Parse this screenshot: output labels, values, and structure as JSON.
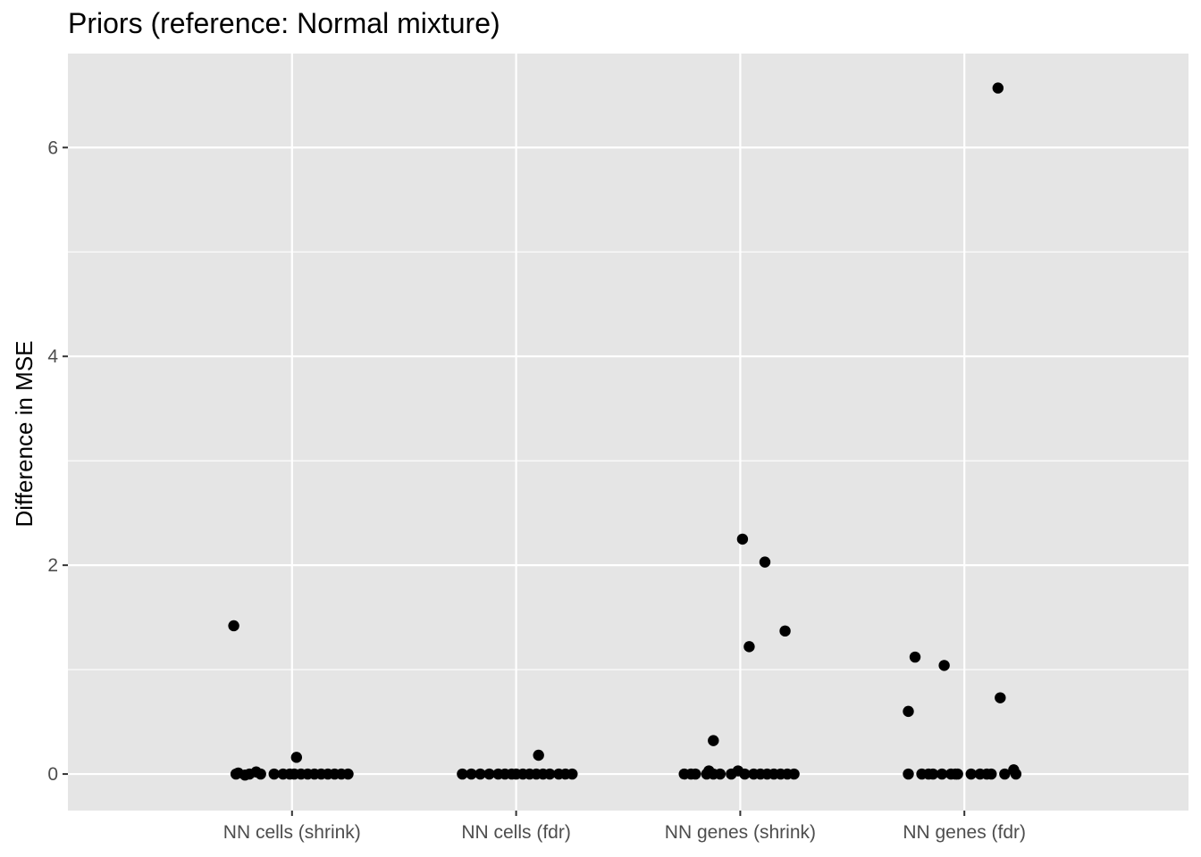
{
  "chart_data": {
    "type": "scatter",
    "title": "Priors (reference: Normal mixture)",
    "xlabel": "",
    "ylabel": "Difference in MSE",
    "categories": [
      "NN cells (shrink)",
      "NN cells (fdr)",
      "NN genes (shrink)",
      "NN genes (fdr)"
    ],
    "y_ticks": [
      0,
      2,
      4,
      6
    ],
    "ylim": [
      -0.35,
      6.9
    ],
    "grid": true,
    "legend": "none",
    "colors": {
      "panel": "#e5e5e5",
      "grid": "#ffffff",
      "point": "#000000",
      "tick_text": "#4d4d4d"
    },
    "points": [
      {
        "category": "NN cells (shrink)",
        "offset": -0.26,
        "value": 1.42
      },
      {
        "category": "NN cells (shrink)",
        "offset": 0.02,
        "value": 0.16
      },
      {
        "category": "NN cells (shrink)",
        "offset": -0.16,
        "value": 0.02
      },
      {
        "category": "NN cells (shrink)",
        "offset": -0.25,
        "value": 0.0
      },
      {
        "category": "NN cells (shrink)",
        "offset": -0.24,
        "value": 0.01
      },
      {
        "category": "NN cells (shrink)",
        "offset": -0.21,
        "value": -0.01
      },
      {
        "category": "NN cells (shrink)",
        "offset": -0.19,
        "value": 0.0
      },
      {
        "category": "NN cells (shrink)",
        "offset": -0.14,
        "value": 0.0
      },
      {
        "category": "NN cells (shrink)",
        "offset": -0.08,
        "value": 0.0
      },
      {
        "category": "NN cells (shrink)",
        "offset": -0.04,
        "value": 0.0
      },
      {
        "category": "NN cells (shrink)",
        "offset": -0.01,
        "value": 0.0
      },
      {
        "category": "NN cells (shrink)",
        "offset": 0.01,
        "value": 0.0
      },
      {
        "category": "NN cells (shrink)",
        "offset": 0.04,
        "value": 0.0
      },
      {
        "category": "NN cells (shrink)",
        "offset": 0.07,
        "value": 0.0
      },
      {
        "category": "NN cells (shrink)",
        "offset": 0.1,
        "value": 0.0
      },
      {
        "category": "NN cells (shrink)",
        "offset": 0.13,
        "value": 0.0
      },
      {
        "category": "NN cells (shrink)",
        "offset": 0.16,
        "value": 0.0
      },
      {
        "category": "NN cells (shrink)",
        "offset": 0.19,
        "value": 0.0
      },
      {
        "category": "NN cells (shrink)",
        "offset": 0.22,
        "value": 0.0
      },
      {
        "category": "NN cells (shrink)",
        "offset": 0.25,
        "value": 0.0
      },
      {
        "category": "NN cells (fdr)",
        "offset": 0.1,
        "value": 0.18
      },
      {
        "category": "NN cells (fdr)",
        "offset": -0.24,
        "value": 0.0
      },
      {
        "category": "NN cells (fdr)",
        "offset": -0.2,
        "value": 0.0
      },
      {
        "category": "NN cells (fdr)",
        "offset": -0.16,
        "value": 0.0
      },
      {
        "category": "NN cells (fdr)",
        "offset": -0.12,
        "value": 0.0
      },
      {
        "category": "NN cells (fdr)",
        "offset": -0.08,
        "value": 0.0
      },
      {
        "category": "NN cells (fdr)",
        "offset": -0.05,
        "value": 0.0
      },
      {
        "category": "NN cells (fdr)",
        "offset": -0.02,
        "value": 0.0
      },
      {
        "category": "NN cells (fdr)",
        "offset": 0.0,
        "value": 0.0
      },
      {
        "category": "NN cells (fdr)",
        "offset": 0.03,
        "value": 0.0
      },
      {
        "category": "NN cells (fdr)",
        "offset": 0.06,
        "value": 0.0
      },
      {
        "category": "NN cells (fdr)",
        "offset": 0.09,
        "value": 0.0
      },
      {
        "category": "NN cells (fdr)",
        "offset": 0.12,
        "value": 0.0
      },
      {
        "category": "NN cells (fdr)",
        "offset": 0.15,
        "value": 0.0
      },
      {
        "category": "NN cells (fdr)",
        "offset": 0.19,
        "value": 0.0
      },
      {
        "category": "NN cells (fdr)",
        "offset": 0.22,
        "value": 0.0
      },
      {
        "category": "NN cells (fdr)",
        "offset": 0.25,
        "value": 0.0
      },
      {
        "category": "NN genes (shrink)",
        "offset": 0.01,
        "value": 2.25
      },
      {
        "category": "NN genes (shrink)",
        "offset": 0.11,
        "value": 2.03
      },
      {
        "category": "NN genes (shrink)",
        "offset": 0.2,
        "value": 1.37
      },
      {
        "category": "NN genes (shrink)",
        "offset": 0.04,
        "value": 1.22
      },
      {
        "category": "NN genes (shrink)",
        "offset": -0.12,
        "value": 0.32
      },
      {
        "category": "NN genes (shrink)",
        "offset": -0.14,
        "value": 0.03
      },
      {
        "category": "NN genes (shrink)",
        "offset": -0.01,
        "value": 0.03
      },
      {
        "category": "NN genes (shrink)",
        "offset": -0.25,
        "value": 0.0
      },
      {
        "category": "NN genes (shrink)",
        "offset": -0.22,
        "value": 0.0
      },
      {
        "category": "NN genes (shrink)",
        "offset": -0.2,
        "value": 0.0
      },
      {
        "category": "NN genes (shrink)",
        "offset": -0.15,
        "value": 0.0
      },
      {
        "category": "NN genes (shrink)",
        "offset": -0.12,
        "value": 0.0
      },
      {
        "category": "NN genes (shrink)",
        "offset": -0.09,
        "value": 0.0
      },
      {
        "category": "NN genes (shrink)",
        "offset": -0.04,
        "value": 0.0
      },
      {
        "category": "NN genes (shrink)",
        "offset": 0.02,
        "value": 0.0
      },
      {
        "category": "NN genes (shrink)",
        "offset": 0.06,
        "value": 0.0
      },
      {
        "category": "NN genes (shrink)",
        "offset": 0.09,
        "value": 0.0
      },
      {
        "category": "NN genes (shrink)",
        "offset": 0.12,
        "value": 0.0
      },
      {
        "category": "NN genes (shrink)",
        "offset": 0.15,
        "value": 0.0
      },
      {
        "category": "NN genes (shrink)",
        "offset": 0.18,
        "value": 0.0
      },
      {
        "category": "NN genes (shrink)",
        "offset": 0.21,
        "value": 0.0
      },
      {
        "category": "NN genes (shrink)",
        "offset": 0.24,
        "value": 0.0
      },
      {
        "category": "NN genes (fdr)",
        "offset": 0.15,
        "value": 6.57
      },
      {
        "category": "NN genes (fdr)",
        "offset": -0.22,
        "value": 1.12
      },
      {
        "category": "NN genes (fdr)",
        "offset": -0.09,
        "value": 1.04
      },
      {
        "category": "NN genes (fdr)",
        "offset": 0.16,
        "value": 0.73
      },
      {
        "category": "NN genes (fdr)",
        "offset": -0.25,
        "value": 0.6
      },
      {
        "category": "NN genes (fdr)",
        "offset": 0.22,
        "value": 0.04
      },
      {
        "category": "NN genes (fdr)",
        "offset": -0.25,
        "value": 0.0
      },
      {
        "category": "NN genes (fdr)",
        "offset": -0.19,
        "value": 0.0
      },
      {
        "category": "NN genes (fdr)",
        "offset": -0.16,
        "value": 0.0
      },
      {
        "category": "NN genes (fdr)",
        "offset": -0.14,
        "value": 0.0
      },
      {
        "category": "NN genes (fdr)",
        "offset": -0.1,
        "value": 0.0
      },
      {
        "category": "NN genes (fdr)",
        "offset": -0.06,
        "value": 0.0
      },
      {
        "category": "NN genes (fdr)",
        "offset": -0.03,
        "value": 0.0
      },
      {
        "category": "NN genes (fdr)",
        "offset": -0.04,
        "value": 0.0
      },
      {
        "category": "NN genes (fdr)",
        "offset": 0.03,
        "value": 0.0
      },
      {
        "category": "NN genes (fdr)",
        "offset": 0.07,
        "value": 0.0
      },
      {
        "category": "NN genes (fdr)",
        "offset": 0.1,
        "value": 0.0
      },
      {
        "category": "NN genes (fdr)",
        "offset": 0.12,
        "value": 0.0
      },
      {
        "category": "NN genes (fdr)",
        "offset": 0.18,
        "value": 0.0
      },
      {
        "category": "NN genes (fdr)",
        "offset": 0.23,
        "value": 0.0
      }
    ]
  }
}
